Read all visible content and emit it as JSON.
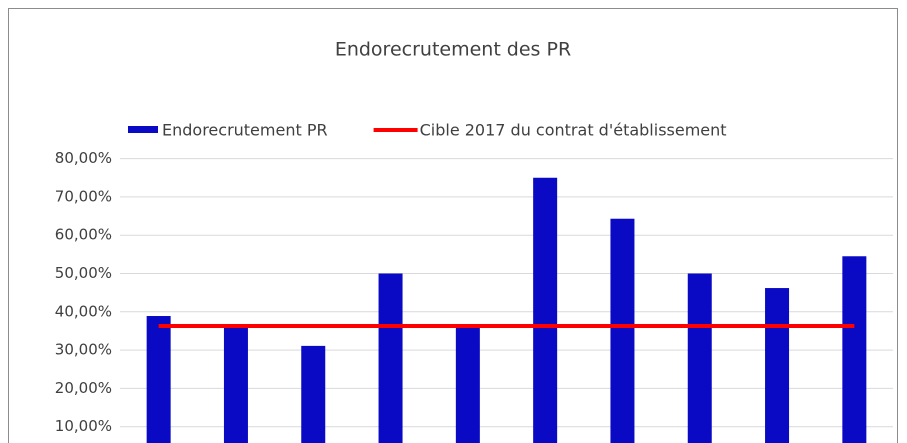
{
  "chart_data": {
    "type": "bar",
    "title": "Endorecrutement des PR",
    "categories": [
      null,
      null,
      null,
      null,
      null,
      null,
      null,
      null,
      null,
      null
    ],
    "series": [
      {
        "name": "Endorecrutement PR",
        "type": "bar",
        "color": "#0a0ac4",
        "values": [
          38.9,
          36.8,
          31.1,
          50,
          36.3,
          75,
          64.3,
          50,
          46.2,
          54.5
        ]
      },
      {
        "name": "Cible 2017 du contrat d'établissement",
        "type": "line",
        "color": "#ff0000",
        "values": [
          36.3,
          36.3,
          36.3,
          36.3,
          36.3,
          36.3,
          36.3,
          36.3,
          36.3,
          36.3
        ]
      }
    ],
    "ylim": [
      0,
      80
    ],
    "yticks": [
      {
        "value": 10,
        "label": "10,00%"
      },
      {
        "value": 20,
        "label": "20,00%"
      },
      {
        "value": 30,
        "label": "30,00%"
      },
      {
        "value": 40,
        "label": "40,00%"
      },
      {
        "value": 50,
        "label": "50,00%"
      },
      {
        "value": 60,
        "label": "60,00%"
      },
      {
        "value": 70,
        "label": "70,00%"
      },
      {
        "value": 80,
        "label": "80,00%"
      }
    ],
    "grid": true
  }
}
